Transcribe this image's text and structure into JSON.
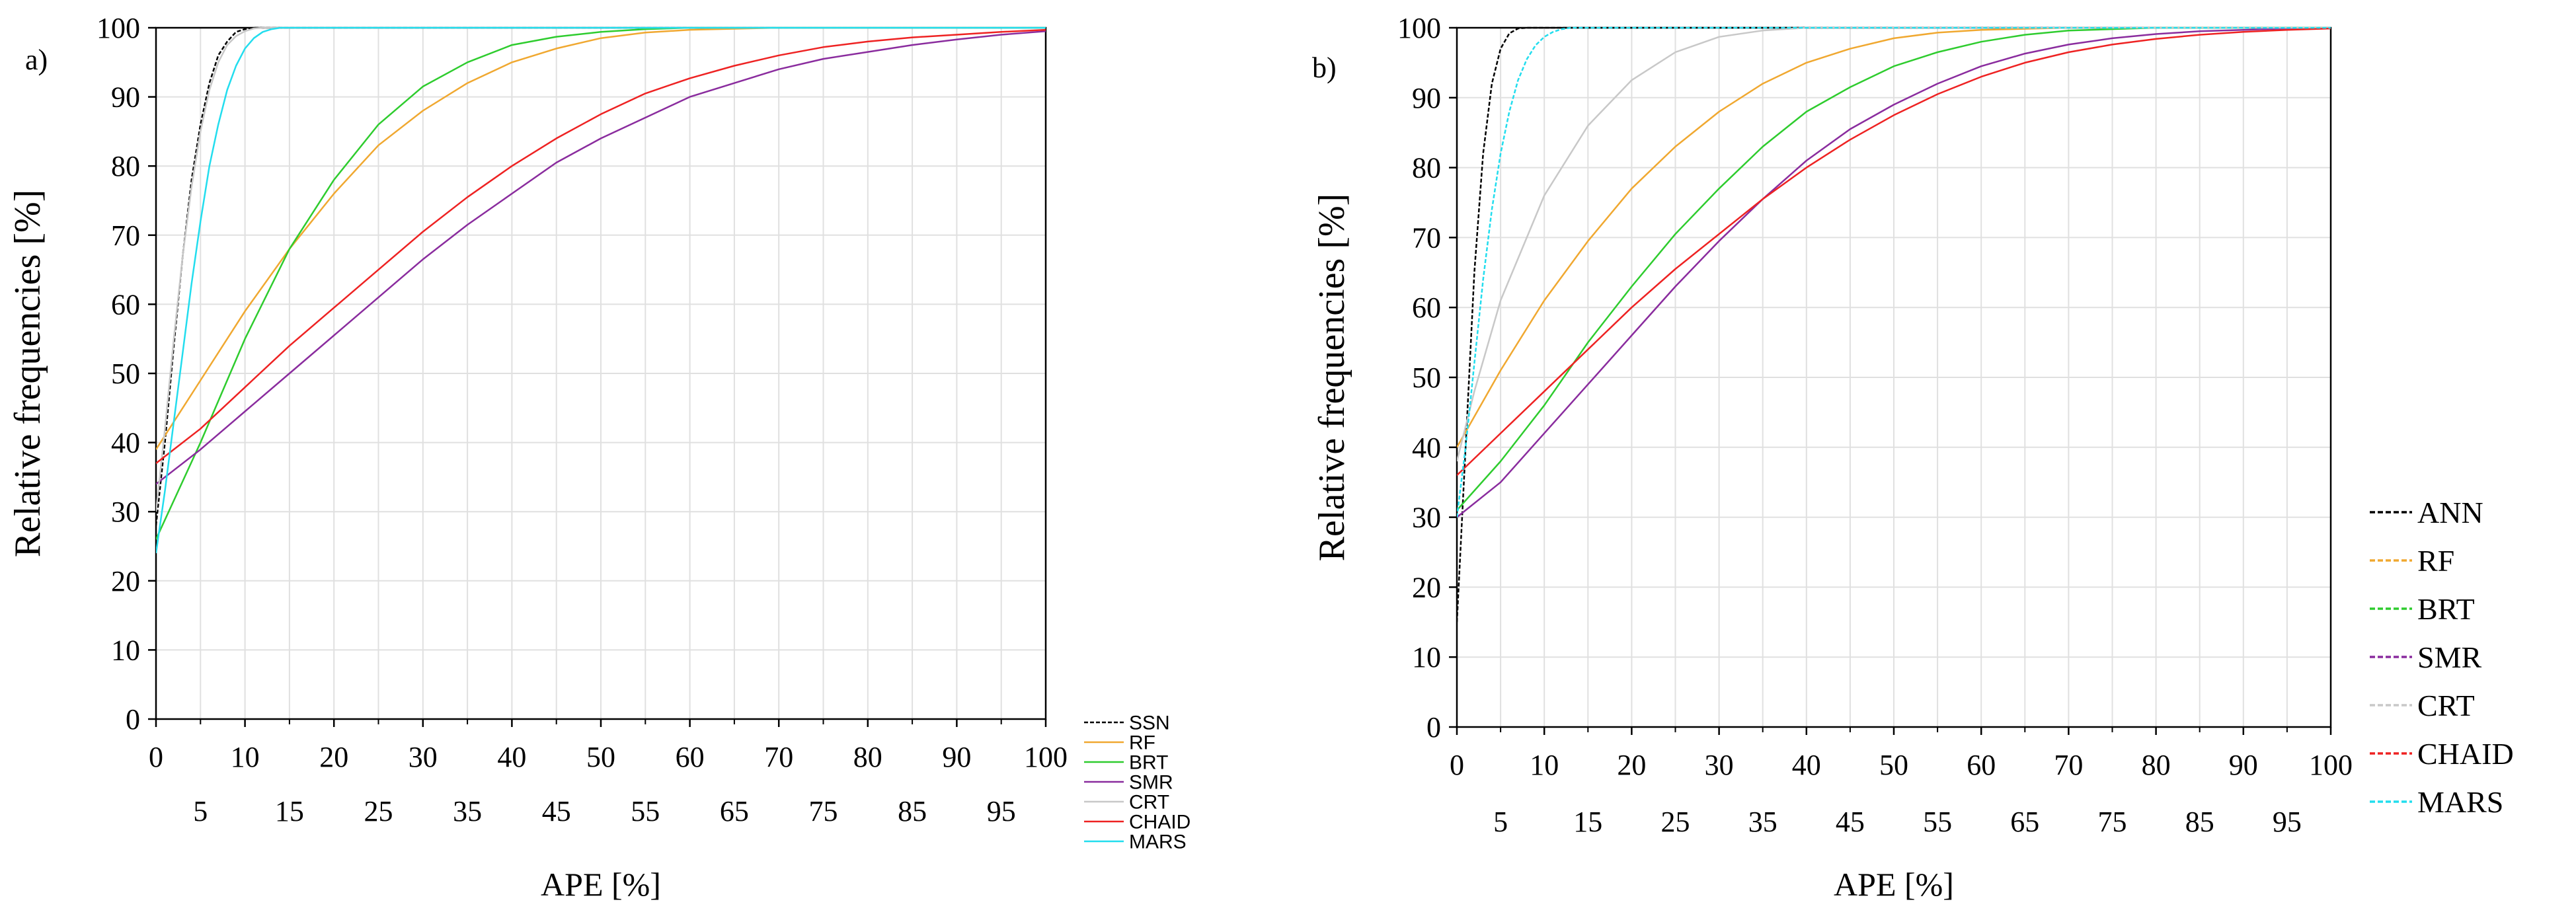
{
  "colors": {
    "SSN": "#000000",
    "ANN": "#000000",
    "RF": "#f0a830",
    "BRT": "#2ecc2e",
    "SMR": "#8a2c9e",
    "CRT": "#c8c8c8",
    "CHAID": "#ee2222",
    "MARS": "#22ddee",
    "grid": "#e0e0e0"
  },
  "chart_data": [
    {
      "type": "line",
      "panel_label": "a)",
      "xlabel": "APE [%]",
      "ylabel": "Relative frequencies [%]",
      "xlim": [
        0,
        100
      ],
      "ylim": [
        0,
        100
      ],
      "x_ticks_major": [
        "0",
        "10",
        "20",
        "30",
        "40",
        "50",
        "60",
        "70",
        "80",
        "90",
        "100"
      ],
      "x_ticks_minor": [
        "5",
        "15",
        "25",
        "35",
        "45",
        "55",
        "65",
        "75",
        "85",
        "95"
      ],
      "y_ticks": [
        "0",
        "10",
        "20",
        "30",
        "40",
        "50",
        "60",
        "70",
        "80",
        "90",
        "100"
      ],
      "legend_style": "small",
      "legend_placement": "right-bottom",
      "series": [
        {
          "name": "SSN",
          "style": "dashed",
          "x": [
            0,
            1,
            2,
            3,
            4,
            5,
            6,
            7,
            8,
            9,
            10,
            11,
            12,
            100
          ],
          "y": [
            28,
            40,
            54,
            67,
            78,
            86,
            92,
            96,
            98,
            99.4,
            99.8,
            100,
            100,
            100
          ]
        },
        {
          "name": "RF",
          "style": "solid",
          "x": [
            0,
            5,
            10,
            15,
            20,
            25,
            30,
            35,
            40,
            45,
            50,
            55,
            60,
            70,
            80,
            90,
            100
          ],
          "y": [
            39,
            49,
            59,
            68,
            76,
            83,
            88,
            92,
            95,
            97,
            98.5,
            99.3,
            99.7,
            100,
            100,
            100,
            100
          ]
        },
        {
          "name": "BRT",
          "style": "solid",
          "x": [
            0,
            5,
            10,
            15,
            20,
            25,
            30,
            35,
            40,
            45,
            50,
            55,
            60,
            70,
            80,
            90,
            100
          ],
          "y": [
            26,
            40,
            55,
            68,
            78,
            86,
            91.5,
            95,
            97.5,
            98.7,
            99.4,
            99.8,
            100,
            100,
            100,
            100,
            100
          ]
        },
        {
          "name": "SMR",
          "style": "solid",
          "x": [
            0,
            5,
            10,
            15,
            20,
            25,
            30,
            35,
            40,
            45,
            50,
            55,
            60,
            65,
            70,
            75,
            80,
            85,
            90,
            95,
            100
          ],
          "y": [
            34,
            39,
            44.5,
            50,
            55.5,
            61,
            66.5,
            71.5,
            76,
            80.5,
            84,
            87,
            90,
            92,
            94,
            95.5,
            96.5,
            97.5,
            98.3,
            99,
            99.5
          ]
        },
        {
          "name": "CRT",
          "style": "solid",
          "x": [
            0,
            1,
            2,
            3,
            4,
            5,
            6,
            7,
            8,
            9,
            10,
            11,
            12,
            100
          ],
          "y": [
            30,
            42,
            55,
            67,
            77,
            85,
            91,
            95,
            97.5,
            98.8,
            99.5,
            99.9,
            100,
            100
          ]
        },
        {
          "name": "CHAID",
          "style": "solid",
          "x": [
            0,
            5,
            10,
            15,
            20,
            25,
            30,
            35,
            40,
            45,
            50,
            55,
            60,
            65,
            70,
            75,
            80,
            85,
            90,
            95,
            100
          ],
          "y": [
            37,
            42,
            48,
            54,
            59.5,
            65,
            70.5,
            75.5,
            80,
            84,
            87.5,
            90.5,
            92.7,
            94.5,
            96,
            97.2,
            98,
            98.6,
            99,
            99.4,
            99.7
          ]
        },
        {
          "name": "MARS",
          "style": "solid",
          "x": [
            0,
            1,
            2,
            3,
            4,
            5,
            6,
            7,
            8,
            9,
            10,
            11,
            12,
            13,
            14,
            100
          ],
          "y": [
            24,
            33,
            43,
            53,
            63,
            72,
            80,
            86,
            91,
            94.5,
            97,
            98.5,
            99.4,
            99.8,
            100,
            100
          ]
        }
      ]
    },
    {
      "type": "line",
      "panel_label": "b)",
      "xlabel": "APE [%]",
      "ylabel": "Relative frequencies [%]",
      "xlim": [
        0,
        100
      ],
      "ylim": [
        0,
        100
      ],
      "x_ticks_major": [
        "0",
        "10",
        "20",
        "30",
        "40",
        "50",
        "60",
        "70",
        "80",
        "90",
        "100"
      ],
      "x_ticks_minor": [
        "5",
        "15",
        "25",
        "35",
        "45",
        "55",
        "65",
        "75",
        "85",
        "95"
      ],
      "y_ticks": [
        "0",
        "10",
        "20",
        "30",
        "40",
        "50",
        "60",
        "70",
        "80",
        "90",
        "100"
      ],
      "legend_style": "large",
      "legend_placement": "right-bottom",
      "series": [
        {
          "name": "ANN",
          "style": "dashed",
          "x": [
            0,
            1,
            2,
            3,
            4,
            5,
            6,
            7,
            8,
            100
          ],
          "y": [
            15,
            40,
            65,
            82,
            92,
            97,
            99.2,
            99.9,
            100,
            100
          ]
        },
        {
          "name": "RF",
          "style": "solid",
          "x": [
            0,
            5,
            10,
            15,
            20,
            25,
            30,
            35,
            40,
            45,
            50,
            55,
            60,
            70,
            80,
            90,
            100
          ],
          "y": [
            40,
            51,
            61,
            69.5,
            77,
            83,
            88,
            92,
            95,
            97,
            98.5,
            99.3,
            99.7,
            100,
            100,
            100,
            100
          ]
        },
        {
          "name": "BRT",
          "style": "solid",
          "x": [
            0,
            5,
            10,
            15,
            20,
            25,
            30,
            35,
            40,
            45,
            50,
            55,
            60,
            65,
            70,
            80,
            90,
            100
          ],
          "y": [
            31,
            38,
            46,
            55,
            63,
            70.5,
            77,
            83,
            88,
            91.5,
            94.5,
            96.5,
            98,
            99,
            99.6,
            100,
            100,
            100
          ]
        },
        {
          "name": "SMR",
          "style": "solid",
          "x": [
            0,
            5,
            10,
            15,
            20,
            25,
            30,
            35,
            40,
            45,
            50,
            55,
            60,
            65,
            70,
            75,
            80,
            85,
            90,
            95,
            100
          ],
          "y": [
            30,
            35,
            42,
            49,
            56,
            63,
            69.5,
            75.5,
            81,
            85.5,
            89,
            92,
            94.5,
            96.3,
            97.6,
            98.5,
            99.1,
            99.5,
            99.7,
            99.9,
            100
          ]
        },
        {
          "name": "CRT",
          "style": "solid",
          "x": [
            0,
            2,
            5,
            10,
            15,
            20,
            25,
            30,
            35,
            40,
            45,
            100
          ],
          "y": [
            38,
            48,
            61,
            76,
            86,
            92.5,
            96.5,
            98.7,
            99.6,
            100,
            100,
            100
          ]
        },
        {
          "name": "CHAID",
          "style": "solid",
          "x": [
            0,
            5,
            10,
            15,
            20,
            25,
            30,
            35,
            40,
            45,
            50,
            55,
            60,
            65,
            70,
            75,
            80,
            85,
            90,
            95,
            100
          ],
          "y": [
            36,
            42,
            48,
            54,
            60,
            65.5,
            70.5,
            75.5,
            80,
            84,
            87.5,
            90.5,
            93,
            95,
            96.5,
            97.6,
            98.4,
            99,
            99.4,
            99.7,
            99.9
          ]
        },
        {
          "name": "MARS",
          "style": "dashed",
          "x": [
            0,
            1,
            2,
            3,
            4,
            5,
            6,
            7,
            8,
            9,
            10,
            11,
            12,
            13,
            14,
            100
          ],
          "y": [
            30,
            40,
            52,
            64,
            74,
            82,
            88,
            92.5,
            95.5,
            97.5,
            98.7,
            99.4,
            99.8,
            100,
            100,
            100
          ]
        }
      ]
    }
  ]
}
